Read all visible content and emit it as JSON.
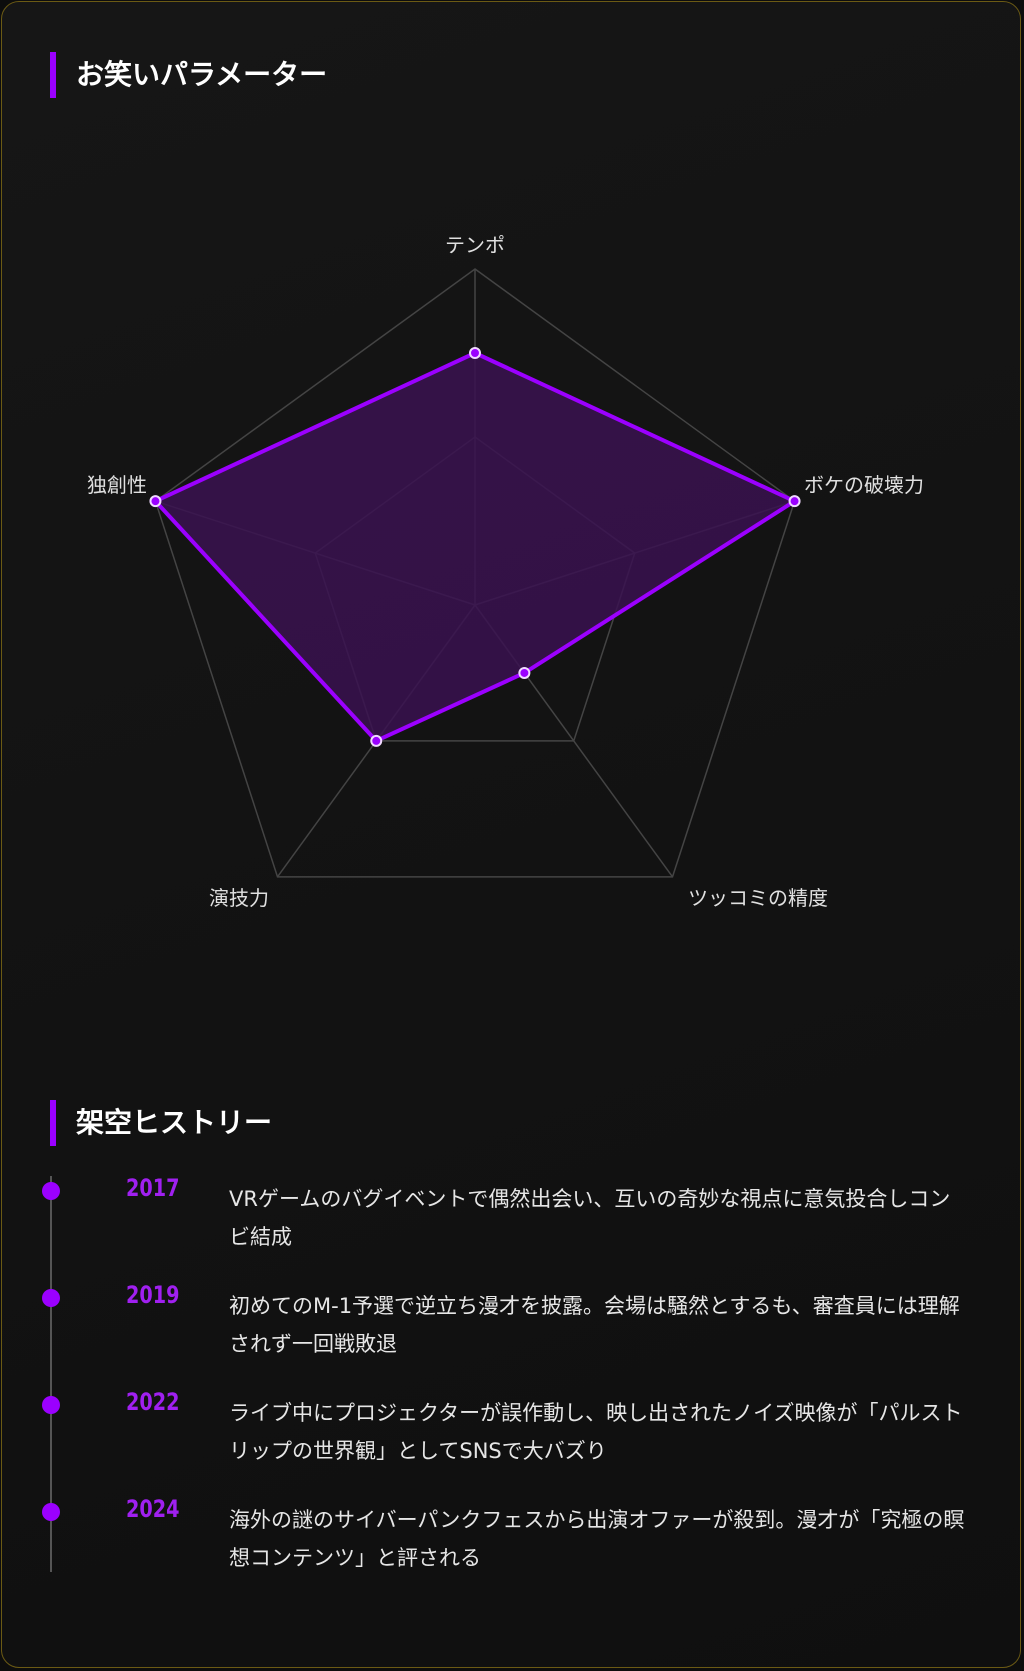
{
  "colors": {
    "accent": "#9b00ff",
    "fill": "#3a1250",
    "grid": "#444444",
    "border": "#6b5a14"
  },
  "sections": {
    "params_title": "お笑いパラメーター",
    "history_title": "架空ヒストリー"
  },
  "chart_data": {
    "type": "radar",
    "categories": [
      "テンポ",
      "ボケの破壊力",
      "ツッコミの精度",
      "演技力",
      "独創性"
    ],
    "values": [
      75,
      100,
      25,
      50,
      100
    ],
    "range": [
      0,
      100
    ],
    "grid_levels": [
      50,
      100
    ]
  },
  "history": [
    {
      "year": "2017",
      "text": "VRゲームのバグイベントで偶然出会い、互いの奇妙な視点に意気投合しコンビ結成"
    },
    {
      "year": "2019",
      "text": "初めてのM-1予選で逆立ち漫才を披露。会場は騒然とするも、審査員には理解されず一回戦敗退"
    },
    {
      "year": "2022",
      "text": "ライブ中にプロジェクターが誤作動し、映し出されたノイズ映像が「パルストリップの世界観」としてSNSで大バズり"
    },
    {
      "year": "2024",
      "text": "海外の謎のサイバーパンクフェスから出演オファーが殺到。漫才が「究極の瞑想コンテンツ」と評される"
    }
  ]
}
